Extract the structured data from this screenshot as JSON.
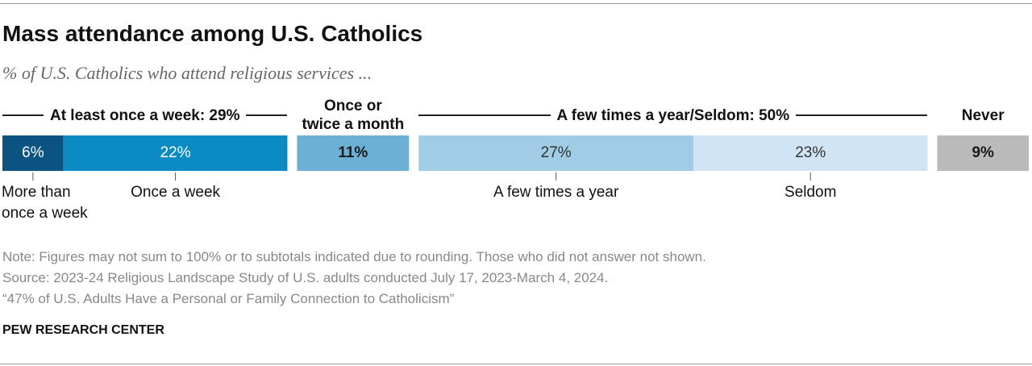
{
  "chart_data": {
    "type": "grouped-stacked-bar",
    "title": "Mass attendance among U.S. Catholics",
    "subtitle": "% of U.S. Catholics who attend religious services ...",
    "groups": [
      {
        "label": "At least once a week: 29%",
        "segments": [
          {
            "name": "More than\nonce a week",
            "value": 6,
            "value_label": "6%",
            "color": "#0b5482",
            "label_color": "#ffffff"
          },
          {
            "name": "Once a week",
            "value": 22,
            "value_label": "22%",
            "color": "#0a8bc3",
            "label_color": "#ffffff"
          }
        ]
      },
      {
        "label": "Once or\ntwice a month",
        "segments": [
          {
            "value": 11,
            "value_label": "11%",
            "color": "#6cb0d6",
            "label_color": "#1a1a1a"
          }
        ]
      },
      {
        "label": "A few times a year/Seldom: 50%",
        "segments": [
          {
            "name": "A few times a year",
            "value": 27,
            "value_label": "27%",
            "color": "#a0cce6",
            "label_color": "#333333"
          },
          {
            "name": "Seldom",
            "value": 23,
            "value_label": "23%",
            "color": "#d0e4f3",
            "label_color": "#333333"
          }
        ]
      },
      {
        "label": "Never",
        "segments": [
          {
            "value": 9,
            "value_label": "9%",
            "color": "#bababa",
            "label_color": "#1a1a1a"
          }
        ]
      }
    ],
    "notes": [
      "Note: Figures may not sum to 100% or to subtotals indicated due to rounding. Those who did not answer not shown.",
      "Source: 2023-24 Religious Landscape Study of U.S. adults conducted July 17, 2023-March 4, 2024.",
      "“47% of U.S. Adults Have a Personal or Family Connection to Catholicism”"
    ],
    "credit": "PEW RESEARCH CENTER"
  }
}
